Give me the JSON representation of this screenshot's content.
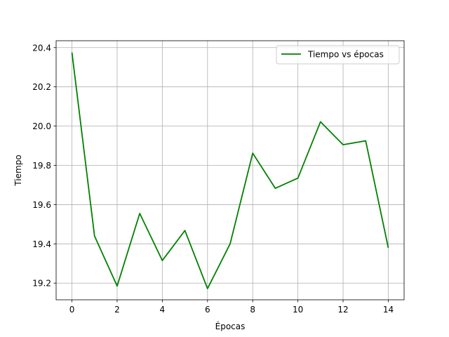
{
  "chart_data": {
    "type": "line",
    "title": "",
    "xlabel": "Épocas",
    "ylabel": "Tiempo",
    "xlim": [
      -0.7,
      14.7
    ],
    "ylim": [
      19.115,
      20.435
    ],
    "xticks": [
      0,
      2,
      4,
      6,
      8,
      10,
      12,
      14
    ],
    "yticks": [
      19.2,
      19.4,
      19.6,
      19.8,
      20.0,
      20.2,
      20.4
    ],
    "ytick_labels": [
      "19.2",
      "19.4",
      "19.6",
      "19.8",
      "20.0",
      "20.2",
      "20.4"
    ],
    "grid": true,
    "legend_position": "top-right",
    "x": [
      0,
      1,
      2,
      3,
      4,
      5,
      6,
      7,
      8,
      9,
      10,
      11,
      12,
      13,
      14
    ],
    "series": [
      {
        "name": "Tiempo vs épocas",
        "color": "#008000",
        "values": [
          20.375,
          19.44,
          19.185,
          19.555,
          19.315,
          19.468,
          19.172,
          19.4,
          19.862,
          19.683,
          19.735,
          20.022,
          19.905,
          19.925,
          19.38
        ]
      }
    ]
  }
}
